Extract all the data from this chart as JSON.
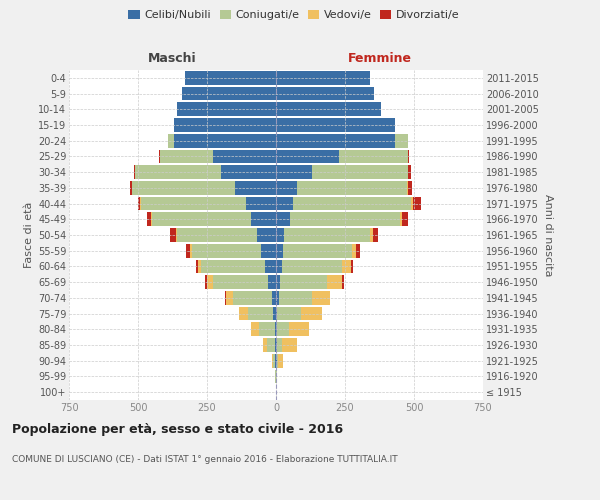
{
  "age_groups": [
    "100+",
    "95-99",
    "90-94",
    "85-89",
    "80-84",
    "75-79",
    "70-74",
    "65-69",
    "60-64",
    "55-59",
    "50-54",
    "45-49",
    "40-44",
    "35-39",
    "30-34",
    "25-29",
    "20-24",
    "15-19",
    "10-14",
    "5-9",
    "0-4"
  ],
  "birth_years": [
    "≤ 1915",
    "1916-1920",
    "1921-1925",
    "1926-1930",
    "1931-1935",
    "1936-1940",
    "1941-1945",
    "1946-1950",
    "1951-1955",
    "1956-1960",
    "1961-1965",
    "1966-1970",
    "1971-1975",
    "1976-1980",
    "1981-1985",
    "1986-1990",
    "1991-1995",
    "1996-2000",
    "2001-2005",
    "2006-2010",
    "2011-2015"
  ],
  "colors": {
    "celibe": "#3a6ea5",
    "coniugato": "#b5c994",
    "vedovo": "#f0c060",
    "divorziato": "#c0271e"
  },
  "maschi": {
    "celibe": [
      0,
      0,
      2,
      2,
      5,
      10,
      15,
      30,
      40,
      55,
      70,
      90,
      110,
      150,
      200,
      230,
      370,
      370,
      360,
      340,
      330
    ],
    "coniugato": [
      0,
      2,
      8,
      30,
      55,
      90,
      140,
      200,
      230,
      250,
      290,
      360,
      380,
      370,
      310,
      190,
      20,
      0,
      0,
      0,
      0
    ],
    "vedovo": [
      0,
      2,
      5,
      15,
      30,
      35,
      25,
      20,
      12,
      8,
      4,
      2,
      1,
      0,
      0,
      0,
      0,
      0,
      0,
      0,
      0
    ],
    "divorziato": [
      0,
      0,
      0,
      0,
      0,
      0,
      5,
      8,
      8,
      12,
      20,
      15,
      8,
      8,
      5,
      3,
      0,
      0,
      0,
      0,
      0
    ]
  },
  "femmine": {
    "celibe": [
      0,
      0,
      2,
      2,
      3,
      5,
      10,
      15,
      20,
      25,
      30,
      50,
      60,
      75,
      130,
      230,
      430,
      430,
      380,
      355,
      340
    ],
    "coniugato": [
      0,
      2,
      5,
      20,
      45,
      85,
      120,
      170,
      220,
      250,
      310,
      400,
      430,
      400,
      350,
      250,
      50,
      0,
      0,
      0,
      0
    ],
    "vedovo": [
      0,
      2,
      18,
      55,
      70,
      75,
      65,
      55,
      30,
      15,
      10,
      5,
      5,
      2,
      0,
      0,
      0,
      0,
      0,
      0,
      0
    ],
    "divorziato": [
      0,
      0,
      0,
      0,
      0,
      0,
      2,
      5,
      8,
      15,
      20,
      25,
      30,
      15,
      8,
      3,
      0,
      0,
      0,
      0,
      0
    ]
  },
  "xlim": 750,
  "title": "Popolazione per età, sesso e stato civile - 2016",
  "subtitle": "COMUNE DI LUSCIANO (CE) - Dati ISTAT 1° gennaio 2016 - Elaborazione TUTTITALIA.IT",
  "ylabel_left": "Fasce di età",
  "ylabel_right": "Anni di nascita",
  "xlabel_maschi": "Maschi",
  "xlabel_femmine": "Femmine",
  "legend_labels": [
    "Celibi/Nubili",
    "Coniugati/e",
    "Vedovi/e",
    "Divorziati/e"
  ],
  "bg_color": "#f0f0f0",
  "plot_bg": "#ffffff",
  "grid_color": "#cccccc",
  "tick_color": "#888888"
}
